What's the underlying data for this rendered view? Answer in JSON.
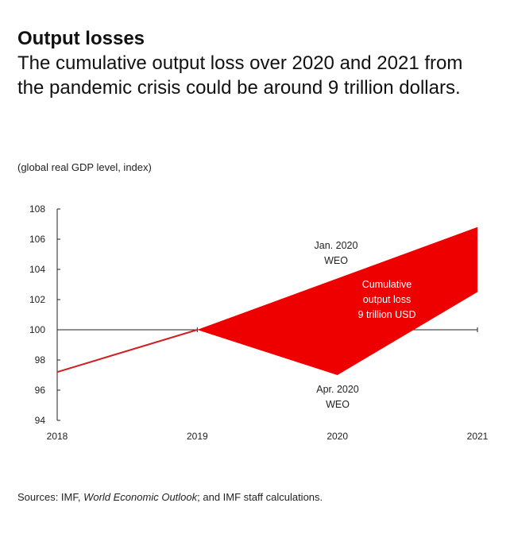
{
  "header": {
    "title": "Output losses",
    "subtitle": "The cumulative output loss over 2020 and 2021 from the pandemic crisis could be around 9 trillion dollars."
  },
  "unit_note": "(global real GDP level, index)",
  "source": {
    "prefix": "Sources: IMF, ",
    "italic": "World Economic Outlook",
    "suffix": "; and IMF staff calculations."
  },
  "colors": {
    "loss_fill": "#ee0000",
    "series_line": "#d11f1f",
    "axis": "#222222"
  },
  "chart_data": {
    "type": "area",
    "title": "Output losses",
    "subtitle": "The cumulative output loss over 2020 and 2021 from the pandemic crisis could be around 9 trillion dollars.",
    "ylabel": "(global real GDP level, index)",
    "xlabel": "",
    "x": [
      "2018",
      "2019",
      "2020",
      "2021"
    ],
    "ylim": [
      94,
      108
    ],
    "yticks": [
      94,
      96,
      98,
      100,
      102,
      104,
      106,
      108
    ],
    "baseline": 100,
    "grid": false,
    "series": [
      {
        "name": "Jan. 2020 WEO",
        "values": [
          97.2,
          100,
          103.4,
          106.8
        ]
      },
      {
        "name": "Apr. 2020 WEO",
        "values": [
          97.2,
          100,
          97.0,
          102.5
        ]
      }
    ],
    "annotations": {
      "jan_label": [
        "Jan. 2020",
        "WEO"
      ],
      "apr_label": [
        "Apr. 2020",
        "WEO"
      ],
      "area_label": [
        "Cumulative",
        "output loss",
        "9 trillion USD"
      ]
    }
  }
}
